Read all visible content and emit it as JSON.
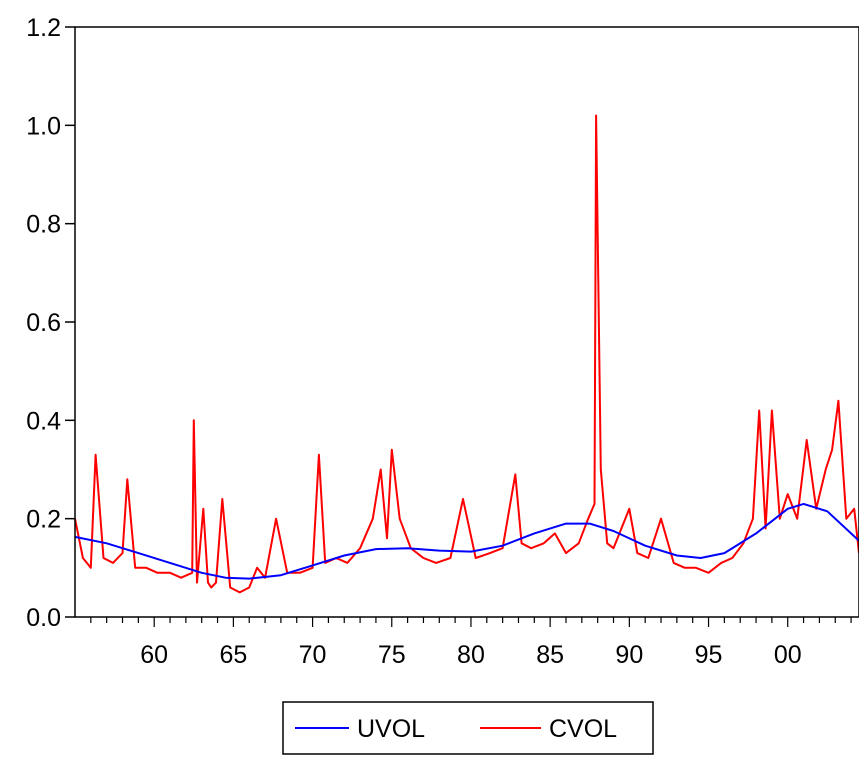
{
  "chart_data": {
    "type": "line",
    "title": "",
    "xlabel": "",
    "ylabel": "",
    "x_range": [
      1955.0,
      2004.5
    ],
    "ylim": [
      0.0,
      1.2
    ],
    "y_ticks": [
      "0.0",
      "0.2",
      "0.4",
      "0.6",
      "0.8",
      "1.0",
      "1.2"
    ],
    "x_ticks": [
      {
        "label": "60",
        "year": 1960
      },
      {
        "label": "65",
        "year": 1965
      },
      {
        "label": "70",
        "year": 1970
      },
      {
        "label": "75",
        "year": 1975
      },
      {
        "label": "80",
        "year": 1980
      },
      {
        "label": "85",
        "year": 1985
      },
      {
        "label": "90",
        "year": 1990
      },
      {
        "label": "95",
        "year": 1995
      },
      {
        "label": "00",
        "year": 2000
      }
    ],
    "grid": false,
    "legend_position": "bottom-center",
    "series": [
      {
        "name": "UVOL",
        "color": "#0000ff",
        "x": [
          1955,
          1957,
          1959,
          1961,
          1963,
          1964.5,
          1966,
          1968,
          1970,
          1972,
          1974,
          1976,
          1978,
          1980,
          1982,
          1984,
          1986,
          1987.5,
          1989,
          1991,
          1993,
          1994.5,
          1996,
          1998,
          2000,
          2001,
          2002.5,
          2004.5
        ],
        "values": [
          0.163,
          0.15,
          0.13,
          0.11,
          0.09,
          0.08,
          0.078,
          0.085,
          0.105,
          0.125,
          0.138,
          0.14,
          0.135,
          0.133,
          0.145,
          0.17,
          0.19,
          0.19,
          0.175,
          0.145,
          0.125,
          0.12,
          0.13,
          0.17,
          0.22,
          0.23,
          0.215,
          0.155
        ]
      },
      {
        "name": "CVOL",
        "color": "#ff0000",
        "x": [
          1955,
          1955.5,
          1956,
          1956.3,
          1956.8,
          1957.4,
          1958,
          1958.3,
          1958.8,
          1959.5,
          1960.2,
          1961,
          1961.7,
          1962.4,
          1962.5,
          1962.7,
          1963.1,
          1963.4,
          1963.6,
          1963.9,
          1964.3,
          1964.8,
          1965.4,
          1966,
          1966.5,
          1967,
          1967.7,
          1968.4,
          1969.2,
          1970,
          1970.4,
          1970.8,
          1971.5,
          1972.2,
          1973,
          1973.8,
          1974.3,
          1974.7,
          1975,
          1975.5,
          1976.2,
          1977,
          1977.8,
          1978.7,
          1979.5,
          1980.3,
          1981.2,
          1982,
          1982.8,
          1983.2,
          1983.8,
          1984.6,
          1985.3,
          1986,
          1986.8,
          1987.4,
          1987.8,
          1987.9,
          1988.2,
          1988.6,
          1989,
          1989.5,
          1990,
          1990.5,
          1991.2,
          1992,
          1992.8,
          1993.5,
          1994.2,
          1995,
          1995.8,
          1996.5,
          1997.2,
          1997.8,
          1998.2,
          1998.6,
          1999,
          1999.5,
          2000,
          2000.6,
          2001.2,
          2001.8,
          2002.4,
          2002.8,
          2003.2,
          2003.7,
          2004.2,
          2004.5
        ],
        "values": [
          0.2,
          0.12,
          0.1,
          0.33,
          0.12,
          0.11,
          0.13,
          0.28,
          0.1,
          0.1,
          0.09,
          0.09,
          0.08,
          0.09,
          0.4,
          0.07,
          0.22,
          0.07,
          0.06,
          0.07,
          0.24,
          0.06,
          0.05,
          0.06,
          0.1,
          0.08,
          0.2,
          0.09,
          0.09,
          0.1,
          0.33,
          0.11,
          0.12,
          0.11,
          0.14,
          0.2,
          0.3,
          0.16,
          0.34,
          0.2,
          0.14,
          0.12,
          0.11,
          0.12,
          0.24,
          0.12,
          0.13,
          0.14,
          0.29,
          0.15,
          0.14,
          0.15,
          0.17,
          0.13,
          0.15,
          0.2,
          0.23,
          1.02,
          0.3,
          0.15,
          0.14,
          0.18,
          0.22,
          0.13,
          0.12,
          0.2,
          0.11,
          0.1,
          0.1,
          0.09,
          0.11,
          0.12,
          0.15,
          0.2,
          0.42,
          0.18,
          0.42,
          0.2,
          0.25,
          0.2,
          0.36,
          0.22,
          0.3,
          0.34,
          0.44,
          0.2,
          0.22,
          0.13
        ]
      }
    ]
  }
}
